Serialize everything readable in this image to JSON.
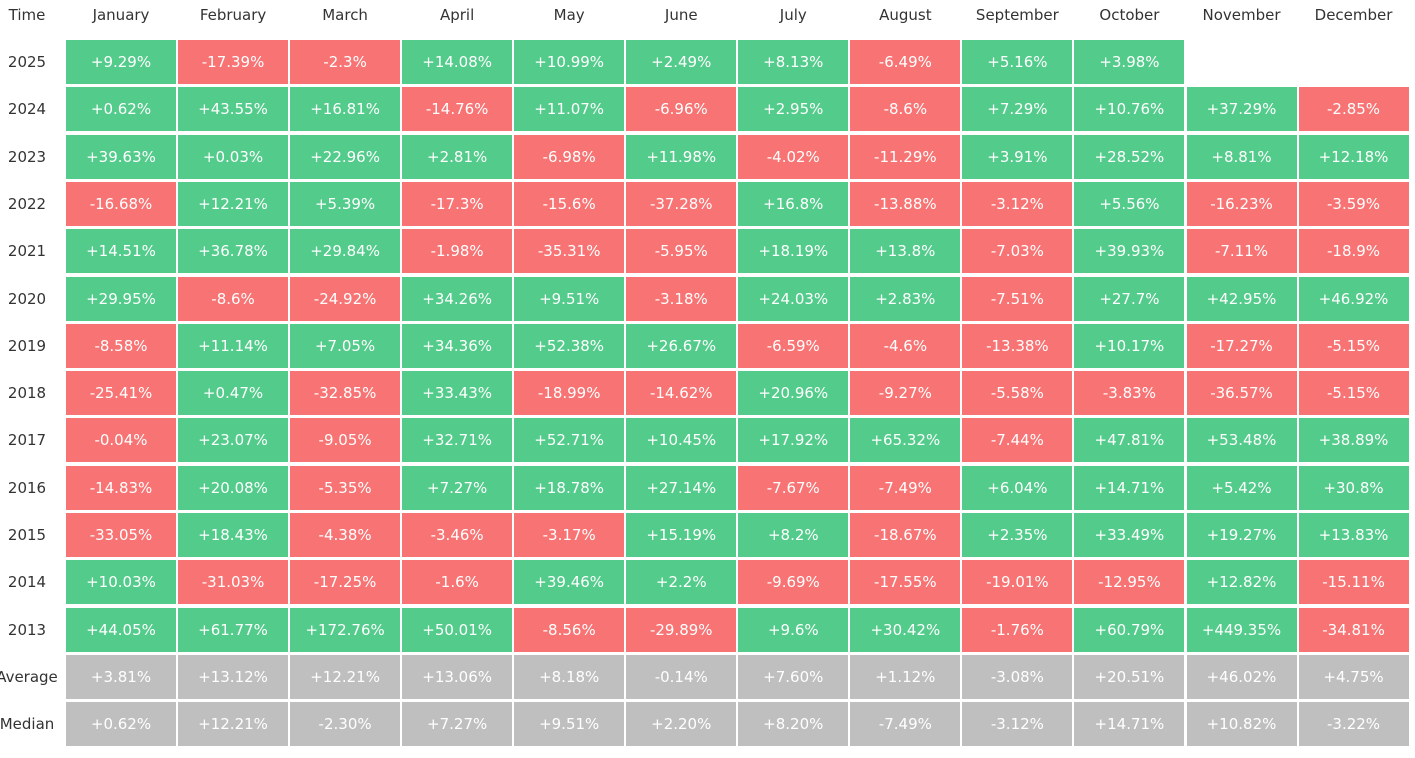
{
  "header": {
    "corner": "Time",
    "months": [
      "January",
      "February",
      "March",
      "April",
      "May",
      "June",
      "July",
      "August",
      "September",
      "October",
      "November",
      "December"
    ]
  },
  "rows": [
    {
      "label": "2025",
      "cells": [
        "+9.29%",
        "-17.39%",
        "-2.3%",
        "+14.08%",
        "+10.99%",
        "+2.49%",
        "+8.13%",
        "-6.49%",
        "+5.16%",
        "+3.98%"
      ]
    },
    {
      "label": "2024",
      "cells": [
        "+0.62%",
        "+43.55%",
        "+16.81%",
        "-14.76%",
        "+11.07%",
        "-6.96%",
        "+2.95%",
        "-8.6%",
        "+7.29%",
        "+10.76%",
        "+37.29%",
        "-2.85%"
      ]
    },
    {
      "label": "2023",
      "cells": [
        "+39.63%",
        "+0.03%",
        "+22.96%",
        "+2.81%",
        "-6.98%",
        "+11.98%",
        "-4.02%",
        "-11.29%",
        "+3.91%",
        "+28.52%",
        "+8.81%",
        "+12.18%"
      ]
    },
    {
      "label": "2022",
      "cells": [
        "-16.68%",
        "+12.21%",
        "+5.39%",
        "-17.3%",
        "-15.6%",
        "-37.28%",
        "+16.8%",
        "-13.88%",
        "-3.12%",
        "+5.56%",
        "-16.23%",
        "-3.59%"
      ]
    },
    {
      "label": "2021",
      "cells": [
        "+14.51%",
        "+36.78%",
        "+29.84%",
        "-1.98%",
        "-35.31%",
        "-5.95%",
        "+18.19%",
        "+13.8%",
        "-7.03%",
        "+39.93%",
        "-7.11%",
        "-18.9%"
      ]
    },
    {
      "label": "2020",
      "cells": [
        "+29.95%",
        "-8.6%",
        "-24.92%",
        "+34.26%",
        "+9.51%",
        "-3.18%",
        "+24.03%",
        "+2.83%",
        "-7.51%",
        "+27.7%",
        "+42.95%",
        "+46.92%"
      ]
    },
    {
      "label": "2019",
      "cells": [
        "-8.58%",
        "+11.14%",
        "+7.05%",
        "+34.36%",
        "+52.38%",
        "+26.67%",
        "-6.59%",
        "-4.6%",
        "-13.38%",
        "+10.17%",
        "-17.27%",
        "-5.15%"
      ]
    },
    {
      "label": "2018",
      "cells": [
        "-25.41%",
        "+0.47%",
        "-32.85%",
        "+33.43%",
        "-18.99%",
        "-14.62%",
        "+20.96%",
        "-9.27%",
        "-5.58%",
        "-3.83%",
        "-36.57%",
        "-5.15%"
      ]
    },
    {
      "label": "2017",
      "cells": [
        "-0.04%",
        "+23.07%",
        "-9.05%",
        "+32.71%",
        "+52.71%",
        "+10.45%",
        "+17.92%",
        "+65.32%",
        "-7.44%",
        "+47.81%",
        "+53.48%",
        "+38.89%"
      ]
    },
    {
      "label": "2016",
      "cells": [
        "-14.83%",
        "+20.08%",
        "-5.35%",
        "+7.27%",
        "+18.78%",
        "+27.14%",
        "-7.67%",
        "-7.49%",
        "+6.04%",
        "+14.71%",
        "+5.42%",
        "+30.8%"
      ]
    },
    {
      "label": "2015",
      "cells": [
        "-33.05%",
        "+18.43%",
        "-4.38%",
        "-3.46%",
        "-3.17%",
        "+15.19%",
        "+8.2%",
        "-18.67%",
        "+2.35%",
        "+33.49%",
        "+19.27%",
        "+13.83%"
      ]
    },
    {
      "label": "2014",
      "cells": [
        "+10.03%",
        "-31.03%",
        "-17.25%",
        "-1.6%",
        "+39.46%",
        "+2.2%",
        "-9.69%",
        "-17.55%",
        "-19.01%",
        "-12.95%",
        "+12.82%",
        "-15.11%"
      ]
    },
    {
      "label": "2013",
      "cells": [
        "+44.05%",
        "+61.77%",
        "+172.76%",
        "+50.01%",
        "-8.56%",
        "-29.89%",
        "+9.6%",
        "+30.42%",
        "-1.76%",
        "+60.79%",
        "+449.35%",
        "-34.81%"
      ]
    }
  ],
  "summary_rows": [
    {
      "label": "Average",
      "cells": [
        "+3.81%",
        "+13.12%",
        "+12.21%",
        "+13.06%",
        "+8.18%",
        "-0.14%",
        "+7.60%",
        "+1.12%",
        "-3.08%",
        "+20.51%",
        "+46.02%",
        "+4.75%"
      ]
    },
    {
      "label": "Median",
      "cells": [
        "+0.62%",
        "+12.21%",
        "-2.30%",
        "+7.27%",
        "+9.51%",
        "+2.20%",
        "+8.20%",
        "-7.49%",
        "-3.12%",
        "+14.71%",
        "+10.82%",
        "-3.22%"
      ]
    }
  ],
  "colors": {
    "positive": "#53cc8b",
    "negative": "#f87373",
    "summary": "#bfbfbf"
  }
}
